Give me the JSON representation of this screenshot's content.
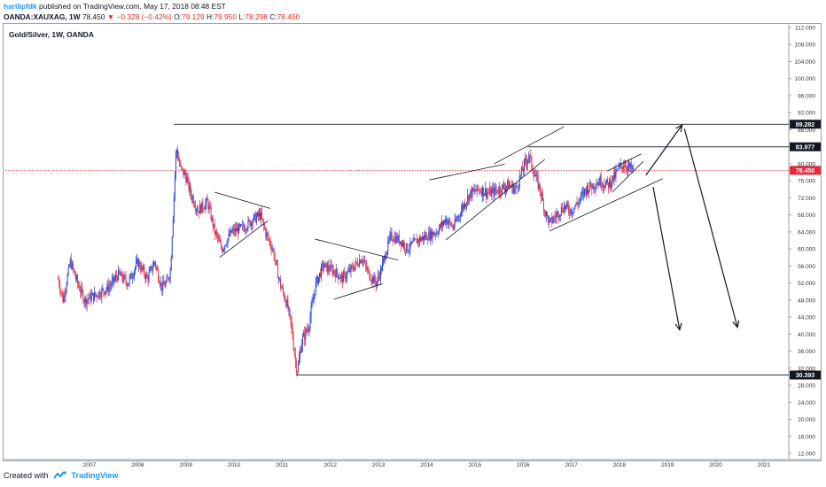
{
  "header": {
    "author": "harilipfdk",
    "published_text": "published on TradingView.com, May 17, 2018 08:48 EST",
    "symbol": "OANDA:XAUXAG, 1W",
    "last": "78.450",
    "change": "−0.328 (−0.42%)",
    "o_label": "O:",
    "o_value": "79.129",
    "h_label": "H:",
    "h_value": "79.950",
    "l_label": "L:",
    "l_value": "78.298",
    "c_label": "C:",
    "c_value": "78.450"
  },
  "footer": {
    "created_with": "Created with",
    "brand": "TradingView"
  },
  "colors": {
    "up": "#1e3cd8",
    "down": "#e5283b",
    "line": "#131722",
    "price_line": "#e5283b",
    "label_bg": "#131722",
    "price_label_bg": "#e5283b"
  },
  "chart_data": {
    "type": "candlestick",
    "title": "Gold/Silver, 1W, OANDA",
    "xlabel": "",
    "ylabel": "",
    "x_ticks": [
      "2007",
      "2008",
      "2009",
      "2010",
      "2011",
      "2012",
      "2013",
      "2014",
      "2015",
      "2016",
      "2017",
      "2018",
      "2019",
      "2020",
      "2021"
    ],
    "y_ticks": [
      "12.000",
      "16.000",
      "20.000",
      "24.000",
      "28.000",
      "32.000",
      "36.000",
      "40.000",
      "44.000",
      "48.000",
      "52.000",
      "56.000",
      "60.000",
      "64.000",
      "68.000",
      "72.000",
      "76.000",
      "80.000",
      "84.000",
      "88.000",
      "92.000",
      "96.000",
      "100.000",
      "104.000",
      "108.000",
      "112.000"
    ],
    "ylim": [
      10,
      114
    ],
    "xlim": [
      2006.0,
      2021.6
    ],
    "price_labels": [
      {
        "value": 89.282,
        "text": "89.282",
        "kind": "level"
      },
      {
        "value": 83.977,
        "text": "83.977",
        "kind": "level"
      },
      {
        "value": 78.45,
        "text": "78.450",
        "kind": "last"
      },
      {
        "value": 30.393,
        "text": "30.393",
        "kind": "level"
      }
    ],
    "path": [
      [
        2006.35,
        53
      ],
      [
        2006.45,
        48
      ],
      [
        2006.6,
        57
      ],
      [
        2006.75,
        52
      ],
      [
        2006.9,
        48
      ],
      [
        2007.1,
        49
      ],
      [
        2007.4,
        51
      ],
      [
        2007.6,
        54
      ],
      [
        2007.8,
        52
      ],
      [
        2008.0,
        57
      ],
      [
        2008.2,
        53
      ],
      [
        2008.35,
        57
      ],
      [
        2008.5,
        51
      ],
      [
        2008.6,
        52
      ],
      [
        2008.68,
        55
      ],
      [
        2008.75,
        72
      ],
      [
        2008.8,
        84
      ],
      [
        2008.88,
        79
      ],
      [
        2009.0,
        77
      ],
      [
        2009.1,
        73
      ],
      [
        2009.25,
        69
      ],
      [
        2009.45,
        71
      ],
      [
        2009.6,
        64
      ],
      [
        2009.75,
        60
      ],
      [
        2009.95,
        64
      ],
      [
        2010.2,
        65
      ],
      [
        2010.4,
        67
      ],
      [
        2010.55,
        68
      ],
      [
        2010.65,
        64
      ],
      [
        2010.8,
        60
      ],
      [
        2010.95,
        52
      ],
      [
        2011.1,
        47
      ],
      [
        2011.2,
        41
      ],
      [
        2011.28,
        33
      ],
      [
        2011.32,
        31.5
      ],
      [
        2011.4,
        38
      ],
      [
        2011.55,
        42
      ],
      [
        2011.7,
        52
      ],
      [
        2011.85,
        56
      ],
      [
        2012.05,
        55
      ],
      [
        2012.25,
        53
      ],
      [
        2012.5,
        56
      ],
      [
        2012.65,
        58
      ],
      [
        2012.8,
        54
      ],
      [
        2012.95,
        52
      ],
      [
        2013.05,
        55
      ],
      [
        2013.15,
        59
      ],
      [
        2013.25,
        63
      ],
      [
        2013.45,
        62
      ],
      [
        2013.6,
        60
      ],
      [
        2013.8,
        62
      ],
      [
        2014.0,
        63
      ],
      [
        2014.2,
        64
      ],
      [
        2014.4,
        67
      ],
      [
        2014.55,
        65
      ],
      [
        2014.75,
        70
      ],
      [
        2014.9,
        73
      ],
      [
        2015.1,
        74
      ],
      [
        2015.3,
        73
      ],
      [
        2015.5,
        74
      ],
      [
        2015.7,
        75
      ],
      [
        2015.85,
        74
      ],
      [
        2016.0,
        79
      ],
      [
        2016.12,
        82
      ],
      [
        2016.22,
        78
      ],
      [
        2016.35,
        74
      ],
      [
        2016.45,
        69
      ],
      [
        2016.55,
        66
      ],
      [
        2016.7,
        68
      ],
      [
        2016.85,
        70
      ],
      [
        2017.0,
        69
      ],
      [
        2017.15,
        71
      ],
      [
        2017.3,
        74
      ],
      [
        2017.45,
        75
      ],
      [
        2017.6,
        76
      ],
      [
        2017.75,
        75
      ],
      [
        2017.9,
        77
      ],
      [
        2018.0,
        79
      ],
      [
        2018.1,
        80
      ],
      [
        2018.2,
        79
      ],
      [
        2018.3,
        78.45
      ]
    ],
    "drawings": {
      "hlines": [
        {
          "x1": 2008.75,
          "x2": 2021.6,
          "y": 89.282
        },
        {
          "x1": 2016.1,
          "x2": 2021.6,
          "y": 83.977
        },
        {
          "x1": 2011.3,
          "x2": 2021.6,
          "y": 30.393
        }
      ],
      "trendlines": [
        {
          "x1": 2009.6,
          "y1": 73.3,
          "x2": 2010.75,
          "y2": 69.5
        },
        {
          "x1": 2009.7,
          "y1": 58.0,
          "x2": 2010.7,
          "y2": 66.6
        },
        {
          "x1": 2011.68,
          "y1": 62.3,
          "x2": 2013.4,
          "y2": 57.4
        },
        {
          "x1": 2012.08,
          "y1": 48.2,
          "x2": 2013.08,
          "y2": 51.8
        },
        {
          "x1": 2014.05,
          "y1": 76.2,
          "x2": 2015.62,
          "y2": 79.9
        },
        {
          "x1": 2015.4,
          "y1": 80.0,
          "x2": 2016.85,
          "y2": 88.7
        },
        {
          "x1": 2014.4,
          "y1": 62.1,
          "x2": 2016.45,
          "y2": 81.0
        },
        {
          "x1": 2016.55,
          "y1": 64.2,
          "x2": 2018.9,
          "y2": 76.5
        },
        {
          "x1": 2017.75,
          "y1": 78.3,
          "x2": 2018.45,
          "y2": 82.3
        },
        {
          "x1": 2017.85,
          "y1": 73.3,
          "x2": 2018.5,
          "y2": 80.6
        }
      ],
      "arrows": [
        {
          "x1": 2018.55,
          "y1": 77.3,
          "x2": 2019.3,
          "y2": 89.1
        },
        {
          "x1": 2019.35,
          "y1": 88.2,
          "x2": 2020.45,
          "y2": 41.6
        },
        {
          "x1": 2018.7,
          "y1": 74.5,
          "x2": 2019.25,
          "y2": 41.0
        }
      ]
    }
  }
}
